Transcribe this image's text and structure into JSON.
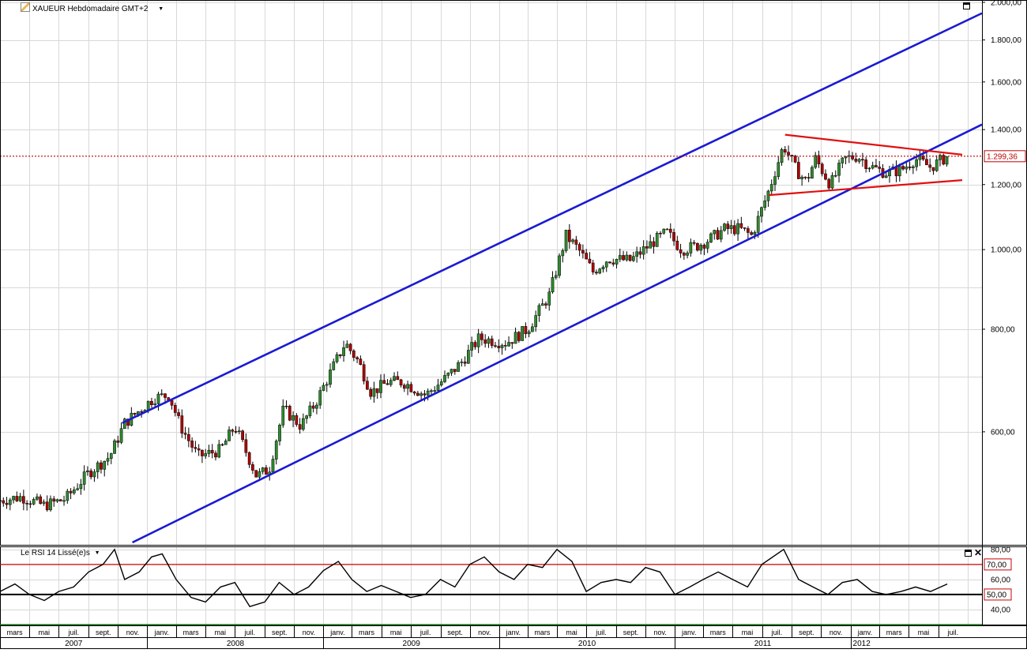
{
  "main_panel": {
    "title": "XAUEUR Hebdomadaire GMT+2",
    "dropdown_arrow": "▼",
    "maximize_icon": "window-maximize-icon"
  },
  "rsi_panel": {
    "title": "Le RSI 14 Lissé(e)s",
    "dropdown_arrow": "▼",
    "maximize_icon": "window-maximize-icon",
    "close_icon": "close-icon",
    "close_glyph": "✕"
  },
  "colors": {
    "channel": "#1a1ad2",
    "triangle": "#e01010",
    "current_price": "#c00000",
    "rsi_70": "#cc0000",
    "rsi_50": "#000000",
    "rsi_30": "#009900",
    "up_candle": "#2e8b2e",
    "down_candle": "#b00000",
    "grid": "#d8d8d8"
  },
  "chart_data": [
    {
      "type": "candlestick",
      "title": "XAUEUR Hebdomadaire GMT+2",
      "y_scale": "log",
      "ylim": [
        440,
        2000
      ],
      "y_ticks": [
        "2.000,00",
        "1.800,00",
        "1.600,00",
        "1.400,00",
        "1.200,00",
        "1.000,00",
        "800,00",
        "600,00"
      ],
      "y_tick_values": [
        2000,
        1800,
        1600,
        1400,
        1200,
        1000,
        800,
        600
      ],
      "current_price": 1299.36,
      "current_price_label": "1.299,36",
      "x_months": [
        "mars",
        "mai",
        "juil.",
        "sept.",
        "nov.",
        "janv.",
        "mars",
        "mai",
        "juil.",
        "sept.",
        "nov.",
        "janv.",
        "mars",
        "mai",
        "juil.",
        "sept.",
        "nov.",
        "janv.",
        "mars",
        "mai",
        "juil.",
        "sept.",
        "nov.",
        "janv.",
        "mars",
        "mai",
        "juil.",
        "sept.",
        "nov.",
        "janv.",
        "mars",
        "mai",
        "juil."
      ],
      "x_years": [
        "2007",
        "2008",
        "2009",
        "2010",
        "2011",
        "2012"
      ],
      "x_range": [
        "2007-03-01",
        "2012-09-30"
      ],
      "price_anchors": [
        [
          "2007-03-01",
          495
        ],
        [
          "2007-04-15",
          500
        ],
        [
          "2007-06-01",
          488
        ],
        [
          "2007-07-15",
          497
        ],
        [
          "2007-09-01",
          535
        ],
        [
          "2007-10-15",
          560
        ],
        [
          "2007-11-15",
          615
        ],
        [
          "2008-01-15",
          660
        ],
        [
          "2008-02-15",
          665
        ],
        [
          "2008-03-10",
          610
        ],
        [
          "2008-04-15",
          560
        ],
        [
          "2008-06-01",
          570
        ],
        [
          "2008-07-01",
          610
        ],
        [
          "2008-08-15",
          530
        ],
        [
          "2008-09-10",
          540
        ],
        [
          "2008-10-10",
          640
        ],
        [
          "2008-11-15",
          610
        ],
        [
          "2008-12-15",
          650
        ],
        [
          "2009-02-15",
          770
        ],
        [
          "2009-03-15",
          730
        ],
        [
          "2009-04-10",
          670
        ],
        [
          "2009-05-15",
          690
        ],
        [
          "2009-06-15",
          690
        ],
        [
          "2009-08-01",
          665
        ],
        [
          "2009-09-15",
          700
        ],
        [
          "2009-10-15",
          730
        ],
        [
          "2009-11-20",
          780
        ],
        [
          "2010-01-15",
          770
        ],
        [
          "2010-03-01",
          800
        ],
        [
          "2010-04-15",
          880
        ],
        [
          "2010-05-20",
          1040
        ],
        [
          "2010-06-15",
          1000
        ],
        [
          "2010-07-15",
          940
        ],
        [
          "2010-08-15",
          975
        ],
        [
          "2010-10-01",
          970
        ],
        [
          "2010-11-15",
          1020
        ],
        [
          "2010-12-15",
          1050
        ],
        [
          "2011-01-15",
          1000
        ],
        [
          "2011-02-15",
          1010
        ],
        [
          "2011-03-15",
          1030
        ],
        [
          "2011-04-15",
          1060
        ],
        [
          "2011-05-15",
          1060
        ],
        [
          "2011-06-10",
          1040
        ],
        [
          "2011-07-15",
          1180
        ],
        [
          "2011-08-15",
          1340
        ],
        [
          "2011-09-10",
          1250
        ],
        [
          "2011-10-01",
          1210
        ],
        [
          "2011-10-20",
          1290
        ],
        [
          "2011-11-20",
          1200
        ],
        [
          "2011-12-20",
          1290
        ],
        [
          "2012-01-15",
          1300
        ],
        [
          "2012-02-15",
          1260
        ],
        [
          "2012-03-15",
          1240
        ],
        [
          "2012-04-15",
          1250
        ],
        [
          "2012-05-15",
          1290
        ],
        [
          "2012-06-15",
          1260
        ],
        [
          "2012-07-20",
          1299
        ]
      ],
      "annotations": [
        {
          "kind": "channel-upper",
          "from": [
            "2007-11-10",
            615
          ],
          "to": [
            "2012-09-30",
            1940
          ]
        },
        {
          "kind": "channel-lower",
          "from": [
            "2007-12-01",
            440
          ],
          "to": [
            "2012-09-30",
            1420
          ]
        },
        {
          "kind": "triangle-upper",
          "from": [
            "2011-08-18",
            1380
          ],
          "to": [
            "2012-08-20",
            1305
          ]
        },
        {
          "kind": "triangle-lower",
          "from": [
            "2011-07-15",
            1165
          ],
          "to": [
            "2012-08-20",
            1215
          ]
        }
      ]
    },
    {
      "type": "line",
      "title": "Le RSI 14 Lissé(e)s",
      "ylim": [
        30,
        82
      ],
      "y_ticks": [
        "80,00",
        "60,00",
        "50,00",
        "40,00"
      ],
      "y_tick_values": [
        80,
        60,
        50,
        40
      ],
      "levels": [
        {
          "value": 70,
          "label": "70,00"
        },
        {
          "value": 50,
          "label": "50,00"
        },
        {
          "value": 30
        }
      ],
      "values": [
        [
          "2007-03-01",
          52
        ],
        [
          "2007-04-01",
          57
        ],
        [
          "2007-05-01",
          50
        ],
        [
          "2007-06-01",
          46
        ],
        [
          "2007-07-01",
          52
        ],
        [
          "2007-08-01",
          55
        ],
        [
          "2007-09-01",
          65
        ],
        [
          "2007-10-01",
          70
        ],
        [
          "2007-10-25",
          80
        ],
        [
          "2007-11-15",
          60
        ],
        [
          "2007-12-15",
          65
        ],
        [
          "2008-01-10",
          75
        ],
        [
          "2008-02-01",
          77
        ],
        [
          "2008-03-01",
          60
        ],
        [
          "2008-04-01",
          48
        ],
        [
          "2008-05-01",
          45
        ],
        [
          "2008-06-01",
          55
        ],
        [
          "2008-07-01",
          58
        ],
        [
          "2008-08-01",
          42
        ],
        [
          "2008-09-01",
          45
        ],
        [
          "2008-10-01",
          58
        ],
        [
          "2008-11-01",
          50
        ],
        [
          "2008-12-01",
          55
        ],
        [
          "2009-01-01",
          66
        ],
        [
          "2009-02-01",
          72
        ],
        [
          "2009-03-01",
          60
        ],
        [
          "2009-04-01",
          52
        ],
        [
          "2009-05-01",
          56
        ],
        [
          "2009-06-01",
          52
        ],
        [
          "2009-07-01",
          48
        ],
        [
          "2009-08-01",
          50
        ],
        [
          "2009-09-01",
          60
        ],
        [
          "2009-10-01",
          55
        ],
        [
          "2009-11-01",
          70
        ],
        [
          "2009-12-01",
          75
        ],
        [
          "2010-01-01",
          65
        ],
        [
          "2010-02-01",
          60
        ],
        [
          "2010-03-01",
          70
        ],
        [
          "2010-04-01",
          68
        ],
        [
          "2010-05-01",
          80
        ],
        [
          "2010-06-01",
          72
        ],
        [
          "2010-07-01",
          52
        ],
        [
          "2010-08-01",
          58
        ],
        [
          "2010-09-01",
          60
        ],
        [
          "2010-10-01",
          58
        ],
        [
          "2010-11-01",
          68
        ],
        [
          "2010-12-01",
          65
        ],
        [
          "2011-01-01",
          50
        ],
        [
          "2011-02-01",
          55
        ],
        [
          "2011-03-01",
          60
        ],
        [
          "2011-04-01",
          65
        ],
        [
          "2011-05-01",
          60
        ],
        [
          "2011-06-01",
          55
        ],
        [
          "2011-07-01",
          70
        ],
        [
          "2011-08-15",
          80
        ],
        [
          "2011-09-15",
          60
        ],
        [
          "2011-10-15",
          55
        ],
        [
          "2011-11-15",
          50
        ],
        [
          "2011-12-15",
          58
        ],
        [
          "2012-01-15",
          60
        ],
        [
          "2012-02-15",
          52
        ],
        [
          "2012-03-15",
          50
        ],
        [
          "2012-04-15",
          52
        ],
        [
          "2012-05-15",
          55
        ],
        [
          "2012-06-15",
          52
        ],
        [
          "2012-07-20",
          57
        ]
      ]
    }
  ]
}
